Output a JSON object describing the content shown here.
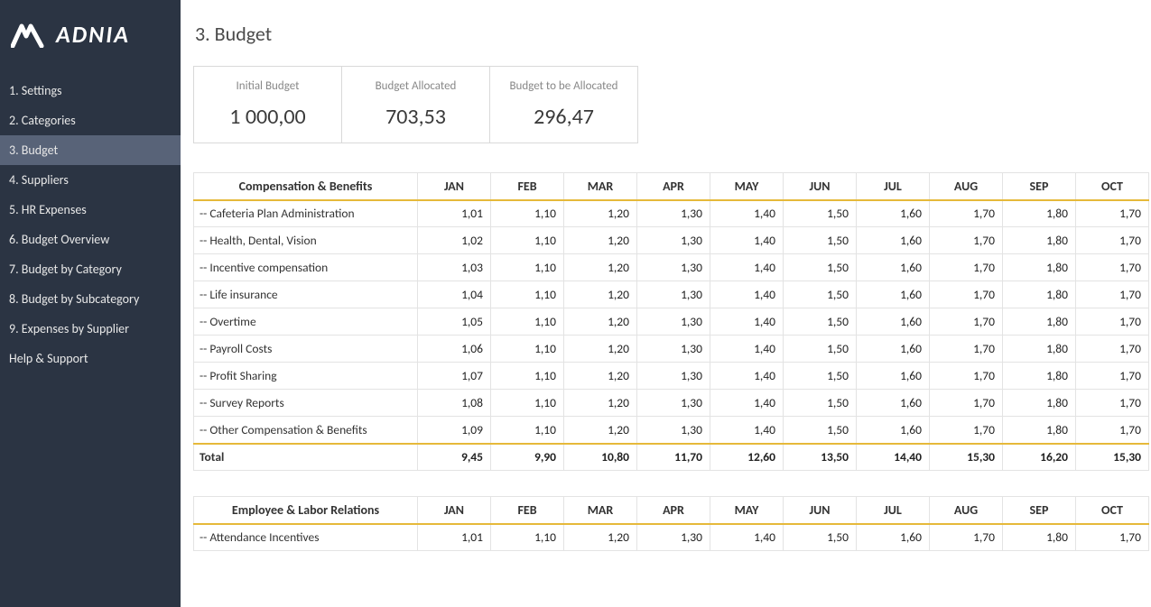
{
  "brand": {
    "name": "ADNIA"
  },
  "colors": {
    "sidebar_bg": "#2b3443",
    "sidebar_active_bg": "#586378",
    "accent_underline": "#e6b93a",
    "border": "#e3e3e3",
    "kpi_border": "#d9d9d9",
    "kpi_label": "#888888",
    "text": "#333333"
  },
  "nav": {
    "items": [
      {
        "label": "1. Settings"
      },
      {
        "label": "2. Categories"
      },
      {
        "label": "3. Budget"
      },
      {
        "label": "4. Suppliers"
      },
      {
        "label": "5. HR Expenses"
      },
      {
        "label": "6. Budget Overview"
      },
      {
        "label": "7. Budget by Category"
      },
      {
        "label": "8. Budget by Subcategory"
      },
      {
        "label": "9. Expenses by Supplier"
      },
      {
        "label": "Help & Support"
      }
    ],
    "active_index": 2
  },
  "page": {
    "title": "3. Budget"
  },
  "kpis": [
    {
      "label": "Initial Budget",
      "value": "1 000,00"
    },
    {
      "label": "Budget Allocated",
      "value": "703,53"
    },
    {
      "label": "Budget to be Allocated",
      "value": "296,47"
    }
  ],
  "months": [
    "JAN",
    "FEB",
    "MAR",
    "APR",
    "MAY",
    "JUN",
    "JUL",
    "AUG",
    "SEP",
    "OCT"
  ],
  "sections": [
    {
      "title": "Compensation & Benefits",
      "rows": [
        {
          "label": "-- Cafeteria Plan Administration",
          "values": [
            "1,01",
            "1,10",
            "1,20",
            "1,30",
            "1,40",
            "1,50",
            "1,60",
            "1,70",
            "1,80",
            "1,70"
          ]
        },
        {
          "label": "-- Health, Dental, Vision",
          "values": [
            "1,02",
            "1,10",
            "1,20",
            "1,30",
            "1,40",
            "1,50",
            "1,60",
            "1,70",
            "1,80",
            "1,70"
          ]
        },
        {
          "label": "-- Incentive compensation",
          "values": [
            "1,03",
            "1,10",
            "1,20",
            "1,30",
            "1,40",
            "1,50",
            "1,60",
            "1,70",
            "1,80",
            "1,70"
          ]
        },
        {
          "label": "-- Life insurance",
          "values": [
            "1,04",
            "1,10",
            "1,20",
            "1,30",
            "1,40",
            "1,50",
            "1,60",
            "1,70",
            "1,80",
            "1,70"
          ]
        },
        {
          "label": "-- Overtime",
          "values": [
            "1,05",
            "1,10",
            "1,20",
            "1,30",
            "1,40",
            "1,50",
            "1,60",
            "1,70",
            "1,80",
            "1,70"
          ]
        },
        {
          "label": "-- Payroll Costs",
          "values": [
            "1,06",
            "1,10",
            "1,20",
            "1,30",
            "1,40",
            "1,50",
            "1,60",
            "1,70",
            "1,80",
            "1,70"
          ]
        },
        {
          "label": "-- Profit Sharing",
          "values": [
            "1,07",
            "1,10",
            "1,20",
            "1,30",
            "1,40",
            "1,50",
            "1,60",
            "1,70",
            "1,80",
            "1,70"
          ]
        },
        {
          "label": "-- Survey Reports",
          "values": [
            "1,08",
            "1,10",
            "1,20",
            "1,30",
            "1,40",
            "1,50",
            "1,60",
            "1,70",
            "1,80",
            "1,70"
          ]
        },
        {
          "label": "-- Other Compensation & Benefits",
          "values": [
            "1,09",
            "1,10",
            "1,20",
            "1,30",
            "1,40",
            "1,50",
            "1,60",
            "1,70",
            "1,80",
            "1,70"
          ]
        }
      ],
      "total_label": "Total",
      "totals": [
        "9,45",
        "9,90",
        "10,80",
        "11,70",
        "12,60",
        "13,50",
        "14,40",
        "15,30",
        "16,20",
        "15,30"
      ]
    },
    {
      "title": "Employee & Labor Relations",
      "rows": [
        {
          "label": "-- Attendance Incentives",
          "values": [
            "1,01",
            "1,10",
            "1,20",
            "1,30",
            "1,40",
            "1,50",
            "1,60",
            "1,70",
            "1,80",
            "1,70"
          ]
        }
      ]
    }
  ]
}
